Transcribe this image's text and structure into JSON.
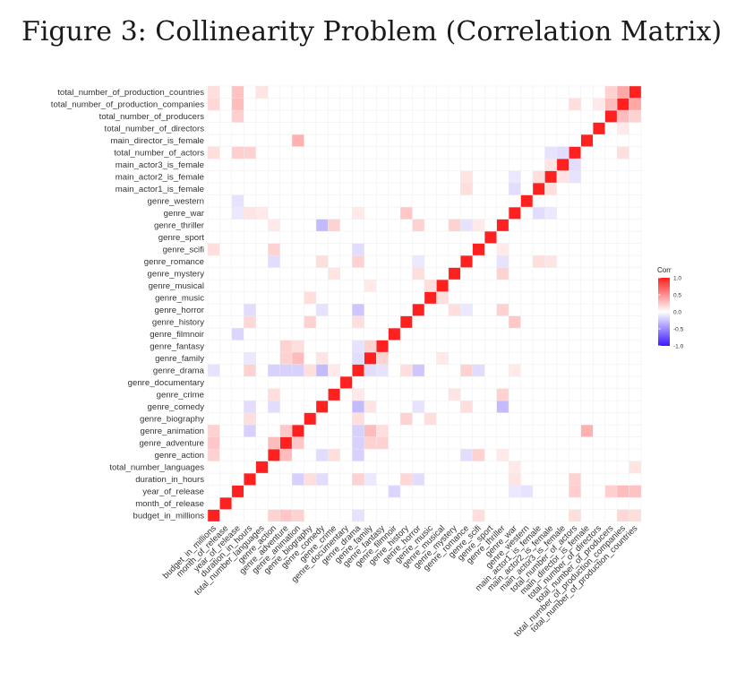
{
  "figure": {
    "title": "Figure 3: Collinearity Problem (Correlation Matrix)"
  },
  "chart_data": {
    "type": "heatmap",
    "variables": [
      "budget_in_millions",
      "month_of_release",
      "year_of_release",
      "duration_in_hours",
      "total_number_languages",
      "genre_action",
      "genre_adventure",
      "genre_animation",
      "genre_biography",
      "genre_comedy",
      "genre_crime",
      "genre_documentary",
      "genre_drama",
      "genre_family",
      "genre_fantasy",
      "genre_filmnoir",
      "genre_history",
      "genre_horror",
      "genre_music",
      "genre_musical",
      "genre_mystery",
      "genre_romance",
      "genre_scifi",
      "genre_sport",
      "genre_thriller",
      "genre_war",
      "genre_western",
      "main_actor1_is_female",
      "main_actor2_is_female",
      "main_actor3_is_female",
      "total_number_of_actors",
      "main_director_is_female",
      "total_number_of_directors",
      "total_number_of_producers",
      "total_number_of_production_companies",
      "total_number_of_production_countries"
    ],
    "approx_correlations": [
      {
        "a": "budget_in_millions",
        "b": "genre_adventure",
        "r": 0.25
      },
      {
        "a": "budget_in_millions",
        "b": "genre_animation",
        "r": 0.2
      },
      {
        "a": "budget_in_millions",
        "b": "genre_action",
        "r": 0.2
      },
      {
        "a": "budget_in_millions",
        "b": "genre_scifi",
        "r": 0.15
      },
      {
        "a": "budget_in_millions",
        "b": "genre_drama",
        "r": -0.12
      },
      {
        "a": "budget_in_millions",
        "b": "total_number_of_production_companies",
        "r": 0.18
      },
      {
        "a": "budget_in_millions",
        "b": "total_number_of_production_countries",
        "r": 0.15
      },
      {
        "a": "budget_in_millions",
        "b": "total_number_of_actors",
        "r": 0.15
      },
      {
        "a": "year_of_release",
        "b": "total_number_of_production_companies",
        "r": 0.3
      },
      {
        "a": "year_of_release",
        "b": "total_number_of_production_countries",
        "r": 0.28
      },
      {
        "a": "year_of_release",
        "b": "total_number_of_producers",
        "r": 0.22
      },
      {
        "a": "year_of_release",
        "b": "total_number_of_actors",
        "r": 0.22
      },
      {
        "a": "year_of_release",
        "b": "genre_filmnoir",
        "r": -0.18
      },
      {
        "a": "year_of_release",
        "b": "genre_western",
        "r": -0.12
      },
      {
        "a": "year_of_release",
        "b": "genre_war",
        "r": -0.1
      },
      {
        "a": "duration_in_hours",
        "b": "genre_drama",
        "r": 0.2
      },
      {
        "a": "duration_in_hours",
        "b": "genre_history",
        "r": 0.18
      },
      {
        "a": "duration_in_hours",
        "b": "genre_biography",
        "r": 0.15
      },
      {
        "a": "duration_in_hours",
        "b": "genre_war",
        "r": 0.12
      },
      {
        "a": "duration_in_hours",
        "b": "genre_comedy",
        "r": -0.15
      },
      {
        "a": "duration_in_hours",
        "b": "genre_horror",
        "r": -0.15
      },
      {
        "a": "duration_in_hours",
        "b": "genre_animation",
        "r": -0.2
      },
      {
        "a": "duration_in_hours",
        "b": "genre_family",
        "r": -0.1
      },
      {
        "a": "duration_in_hours",
        "b": "total_number_of_actors",
        "r": 0.2
      },
      {
        "a": "total_number_languages",
        "b": "total_number_of_production_countries",
        "r": 0.12
      },
      {
        "a": "total_number_languages",
        "b": "genre_war",
        "r": 0.1
      },
      {
        "a": "genre_action",
        "b": "genre_adventure",
        "r": 0.3
      },
      {
        "a": "genre_action",
        "b": "genre_scifi",
        "r": 0.2
      },
      {
        "a": "genre_action",
        "b": "genre_crime",
        "r": 0.15
      },
      {
        "a": "genre_action",
        "b": "genre_thriller",
        "r": 0.1
      },
      {
        "a": "genre_action",
        "b": "genre_drama",
        "r": -0.2
      },
      {
        "a": "genre_action",
        "b": "genre_comedy",
        "r": -0.15
      },
      {
        "a": "genre_action",
        "b": "genre_romance",
        "r": -0.15
      },
      {
        "a": "genre_adventure",
        "b": "genre_animation",
        "r": 0.25
      },
      {
        "a": "genre_adventure",
        "b": "genre_fantasy",
        "r": 0.2
      },
      {
        "a": "genre_adventure",
        "b": "genre_family",
        "r": 0.2
      },
      {
        "a": "genre_adventure",
        "b": "genre_drama",
        "r": -0.2
      },
      {
        "a": "genre_animation",
        "b": "genre_family",
        "r": 0.3
      },
      {
        "a": "genre_animation",
        "b": "genre_fantasy",
        "r": 0.15
      },
      {
        "a": "genre_animation",
        "b": "genre_drama",
        "r": -0.2
      },
      {
        "a": "genre_animation",
        "b": "main_director_is_female",
        "r": 0.35
      },
      {
        "a": "genre_biography",
        "b": "genre_history",
        "r": 0.2
      },
      {
        "a": "genre_biography",
        "b": "genre_drama",
        "r": 0.15
      },
      {
        "a": "genre_biography",
        "b": "genre_music",
        "r": 0.15
      },
      {
        "a": "genre_comedy",
        "b": "genre_drama",
        "r": -0.3
      },
      {
        "a": "genre_comedy",
        "b": "genre_thriller",
        "r": -0.3
      },
      {
        "a": "genre_comedy",
        "b": "genre_romance",
        "r": 0.15
      },
      {
        "a": "genre_comedy",
        "b": "genre_family",
        "r": 0.12
      },
      {
        "a": "genre_comedy",
        "b": "genre_horror",
        "r": -0.12
      },
      {
        "a": "genre_crime",
        "b": "genre_thriller",
        "r": 0.2
      },
      {
        "a": "genre_crime",
        "b": "genre_mystery",
        "r": 0.12
      },
      {
        "a": "genre_crime",
        "b": "genre_drama",
        "r": 0.1
      },
      {
        "a": "genre_drama",
        "b": "genre_romance",
        "r": 0.2
      },
      {
        "a": "genre_drama",
        "b": "genre_history",
        "r": 0.15
      },
      {
        "a": "genre_drama",
        "b": "genre_war",
        "r": 0.1
      },
      {
        "a": "genre_drama",
        "b": "genre_horror",
        "r": -0.25
      },
      {
        "a": "genre_drama",
        "b": "genre_family",
        "r": -0.15
      },
      {
        "a": "genre_drama",
        "b": "genre_scifi",
        "r": -0.15
      },
      {
        "a": "genre_drama",
        "b": "genre_fantasy",
        "r": -0.12
      },
      {
        "a": "genre_family",
        "b": "genre_fantasy",
        "r": 0.2
      },
      {
        "a": "genre_family",
        "b": "genre_musical",
        "r": 0.1
      },
      {
        "a": "genre_horror",
        "b": "genre_thriller",
        "r": 0.2
      },
      {
        "a": "genre_horror",
        "b": "genre_mystery",
        "r": 0.15
      },
      {
        "a": "genre_horror",
        "b": "genre_romance",
        "r": -0.1
      },
      {
        "a": "genre_history",
        "b": "genre_war",
        "r": 0.25
      },
      {
        "a": "genre_music",
        "b": "genre_musical",
        "r": 0.15
      },
      {
        "a": "genre_mystery",
        "b": "genre_thriller",
        "r": 0.2
      },
      {
        "a": "genre_romance",
        "b": "genre_thriller",
        "r": -0.12
      },
      {
        "a": "genre_romance",
        "b": "main_actor1_is_female",
        "r": 0.15
      },
      {
        "a": "genre_romance",
        "b": "main_actor2_is_female",
        "r": 0.12
      },
      {
        "a": "genre_scifi",
        "b": "genre_thriller",
        "r": 0.1
      },
      {
        "a": "genre_war",
        "b": "main_actor1_is_female",
        "r": -0.15
      },
      {
        "a": "genre_war",
        "b": "main_actor2_is_female",
        "r": -0.1
      },
      {
        "a": "main_actor1_is_female",
        "b": "main_actor2_is_female",
        "r": 0.15
      },
      {
        "a": "main_actor2_is_female",
        "b": "main_actor3_is_female",
        "r": 0.12
      },
      {
        "a": "main_actor3_is_female",
        "b": "total_number_of_actors",
        "r": -0.15
      },
      {
        "a": "main_actor2_is_female",
        "b": "total_number_of_actors",
        "r": -0.12
      },
      {
        "a": "total_number_of_actors",
        "b": "total_number_of_production_companies",
        "r": 0.15
      },
      {
        "a": "total_number_of_directors",
        "b": "total_number_of_production_companies",
        "r": 0.1
      },
      {
        "a": "total_number_of_producers",
        "b": "total_number_of_production_companies",
        "r": 0.3
      },
      {
        "a": "total_number_of_producers",
        "b": "total_number_of_production_countries",
        "r": 0.2
      },
      {
        "a": "total_number_of_production_companies",
        "b": "total_number_of_production_countries",
        "r": 0.4
      }
    ],
    "legend": {
      "title": "Corr",
      "ticks": [
        "1.0",
        "0.5",
        "0.0",
        "-0.5",
        "-1.0"
      ],
      "tick_values": [
        1.0,
        0.5,
        0.0,
        -0.5,
        -1.0
      ],
      "colors": {
        "high": "#ff2020",
        "mid": "#ffffff",
        "low": "#3b19ff"
      },
      "placement": "right"
    },
    "value_range": [
      -1,
      1
    ]
  }
}
